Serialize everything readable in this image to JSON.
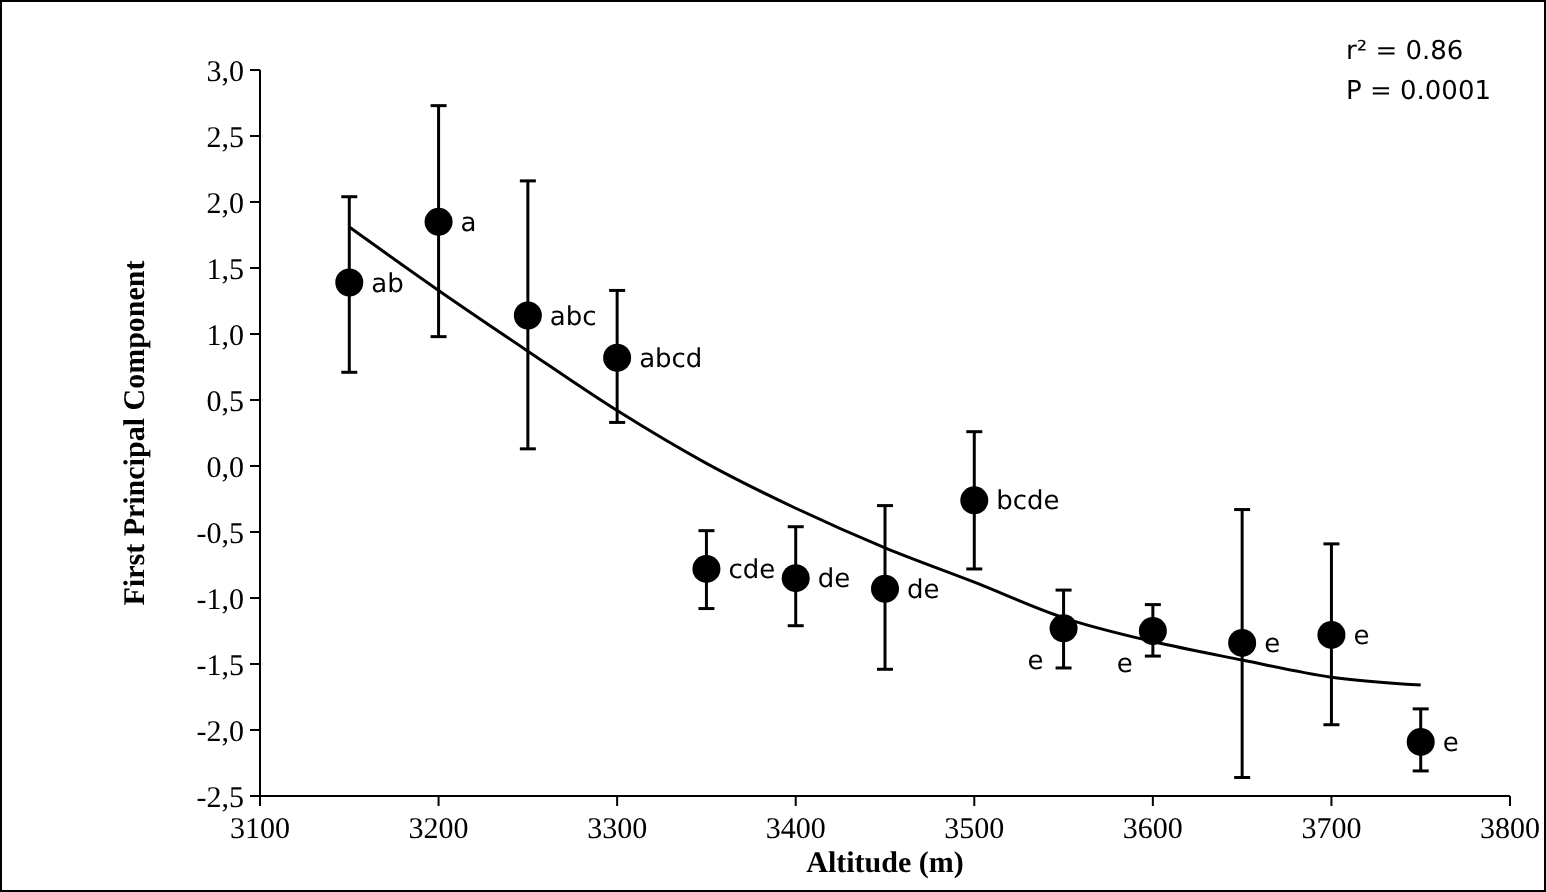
{
  "chart_data": {
    "type": "scatter",
    "xlabel": "Altitude (m)",
    "ylabel": "First Principal Component",
    "xlim": [
      3100,
      3800
    ],
    "xticks": [
      3100,
      3200,
      3300,
      3400,
      3500,
      3600,
      3700,
      3800
    ],
    "ylim": [
      -2.5,
      3
    ],
    "yticks": [
      {
        "value": -2.5,
        "label": "-2,5"
      },
      {
        "value": -2,
        "label": "-2,0"
      },
      {
        "value": -1.5,
        "label": "-1,5"
      },
      {
        "value": -1,
        "label": "-1,0"
      },
      {
        "value": -0.5,
        "label": "-0,5"
      },
      {
        "value": 0,
        "label": "0,0"
      },
      {
        "value": 0.5,
        "label": "0,5"
      },
      {
        "value": 1,
        "label": "1,0"
      },
      {
        "value": 1.5,
        "label": "1,5"
      },
      {
        "value": 2,
        "label": "2,0"
      },
      {
        "value": 2.5,
        "label": "2,5"
      },
      {
        "value": 3,
        "label": "3,0"
      }
    ],
    "grid": false,
    "marker": "circle",
    "series": [
      {
        "color": "#000000",
        "x": [
          3150,
          3200,
          3250,
          3300,
          3350,
          3400,
          3450,
          3500,
          3550,
          3600,
          3650,
          3700,
          3750
        ],
        "values": [
          1.39,
          1.85,
          1.14,
          0.82,
          -0.78,
          -0.85,
          -0.93,
          -0.26,
          -1.23,
          -1.25,
          -1.34,
          -1.28,
          -2.09
        ],
        "errors": [
          [
            0.71,
            2.04
          ],
          [
            0.98,
            2.73
          ],
          [
            0.13,
            2.16
          ],
          [
            0.33,
            1.33
          ],
          [
            -1.08,
            -0.49
          ],
          [
            -1.21,
            -0.46
          ],
          [
            -1.54,
            -0.3
          ],
          [
            -0.78,
            0.26
          ],
          [
            -1.53,
            -0.94
          ],
          [
            -1.44,
            -1.05
          ],
          [
            -2.36,
            -0.33
          ],
          [
            -1.96,
            -0.59
          ],
          [
            -2.31,
            -1.84
          ]
        ]
      },
      {
        "type": "line",
        "color": "#000000",
        "marker": "none",
        "line_style": "solid",
        "x": [
          3150,
          3200,
          3250,
          3300,
          3350,
          3400,
          3450,
          3500,
          3550,
          3600,
          3650,
          3700,
          3750
        ],
        "values": [
          1.81,
          1.33,
          0.87,
          0.42,
          0.02,
          -0.32,
          -0.62,
          -0.88,
          -1.15,
          -1.33,
          -1.47,
          -1.6,
          -1.66
        ]
      }
    ],
    "annotations": [
      "r² = 0.86",
      "P =  0.0001",
      {
        "text": "ab",
        "x": 3150,
        "y": 1.39
      },
      {
        "text": "a",
        "x": 3200,
        "y": 1.85
      },
      {
        "text": "abc",
        "x": 3250,
        "y": 1.14
      },
      {
        "text": "abcd",
        "x": 3300,
        "y": 0.82
      },
      {
        "text": "cde",
        "x": 3350,
        "y": -0.78
      },
      {
        "text": "de",
        "x": 3400,
        "y": -0.85
      },
      {
        "text": "de",
        "x": 3450,
        "y": -0.93
      },
      {
        "text": "bcde",
        "x": 3500,
        "y": -0.26
      },
      {
        "text": "e",
        "x": 3550,
        "y": -1.23
      },
      {
        "text": "e",
        "x": 3600,
        "y": -1.25
      },
      {
        "text": "e",
        "x": 3650,
        "y": -1.34
      },
      {
        "text": "e",
        "x": 3700,
        "y": -1.28
      },
      {
        "text": "e",
        "x": 3750,
        "y": -2.09
      }
    ]
  }
}
